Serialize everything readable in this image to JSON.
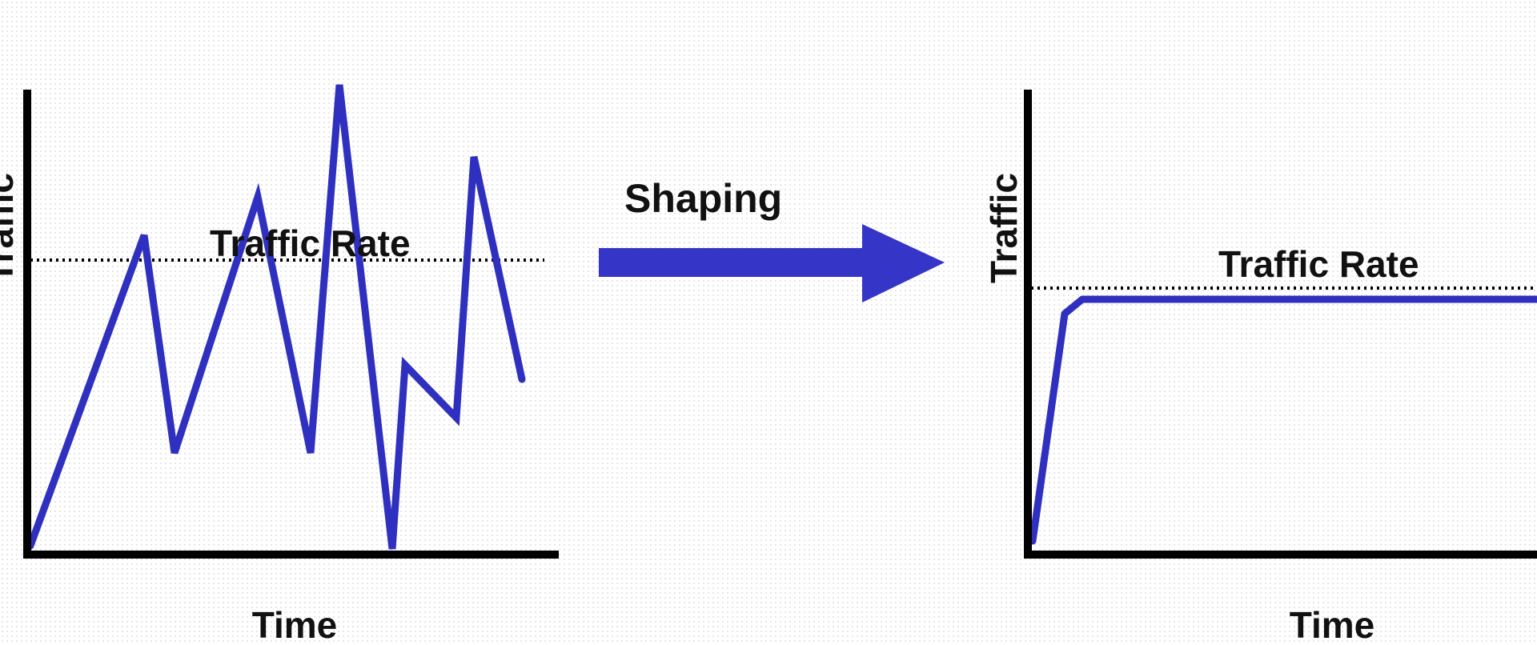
{
  "colors": {
    "signal": "#3030c0",
    "axis": "#000000",
    "arrow": "#3535c8",
    "background_dots": "#e4e4e4"
  },
  "left_panel": {
    "y_axis_label": "Traffic",
    "x_axis_label": "Time",
    "rate_label": "Traffic Rate",
    "description": "bursty traffic that repeatedly exceeds the traffic rate"
  },
  "arrow": {
    "label": "Shaping"
  },
  "right_panel": {
    "y_axis_label": "Traffic",
    "x_axis_label": "Time",
    "rate_label": "Traffic Rate",
    "description": "shaped traffic held steady just below the traffic rate"
  }
}
